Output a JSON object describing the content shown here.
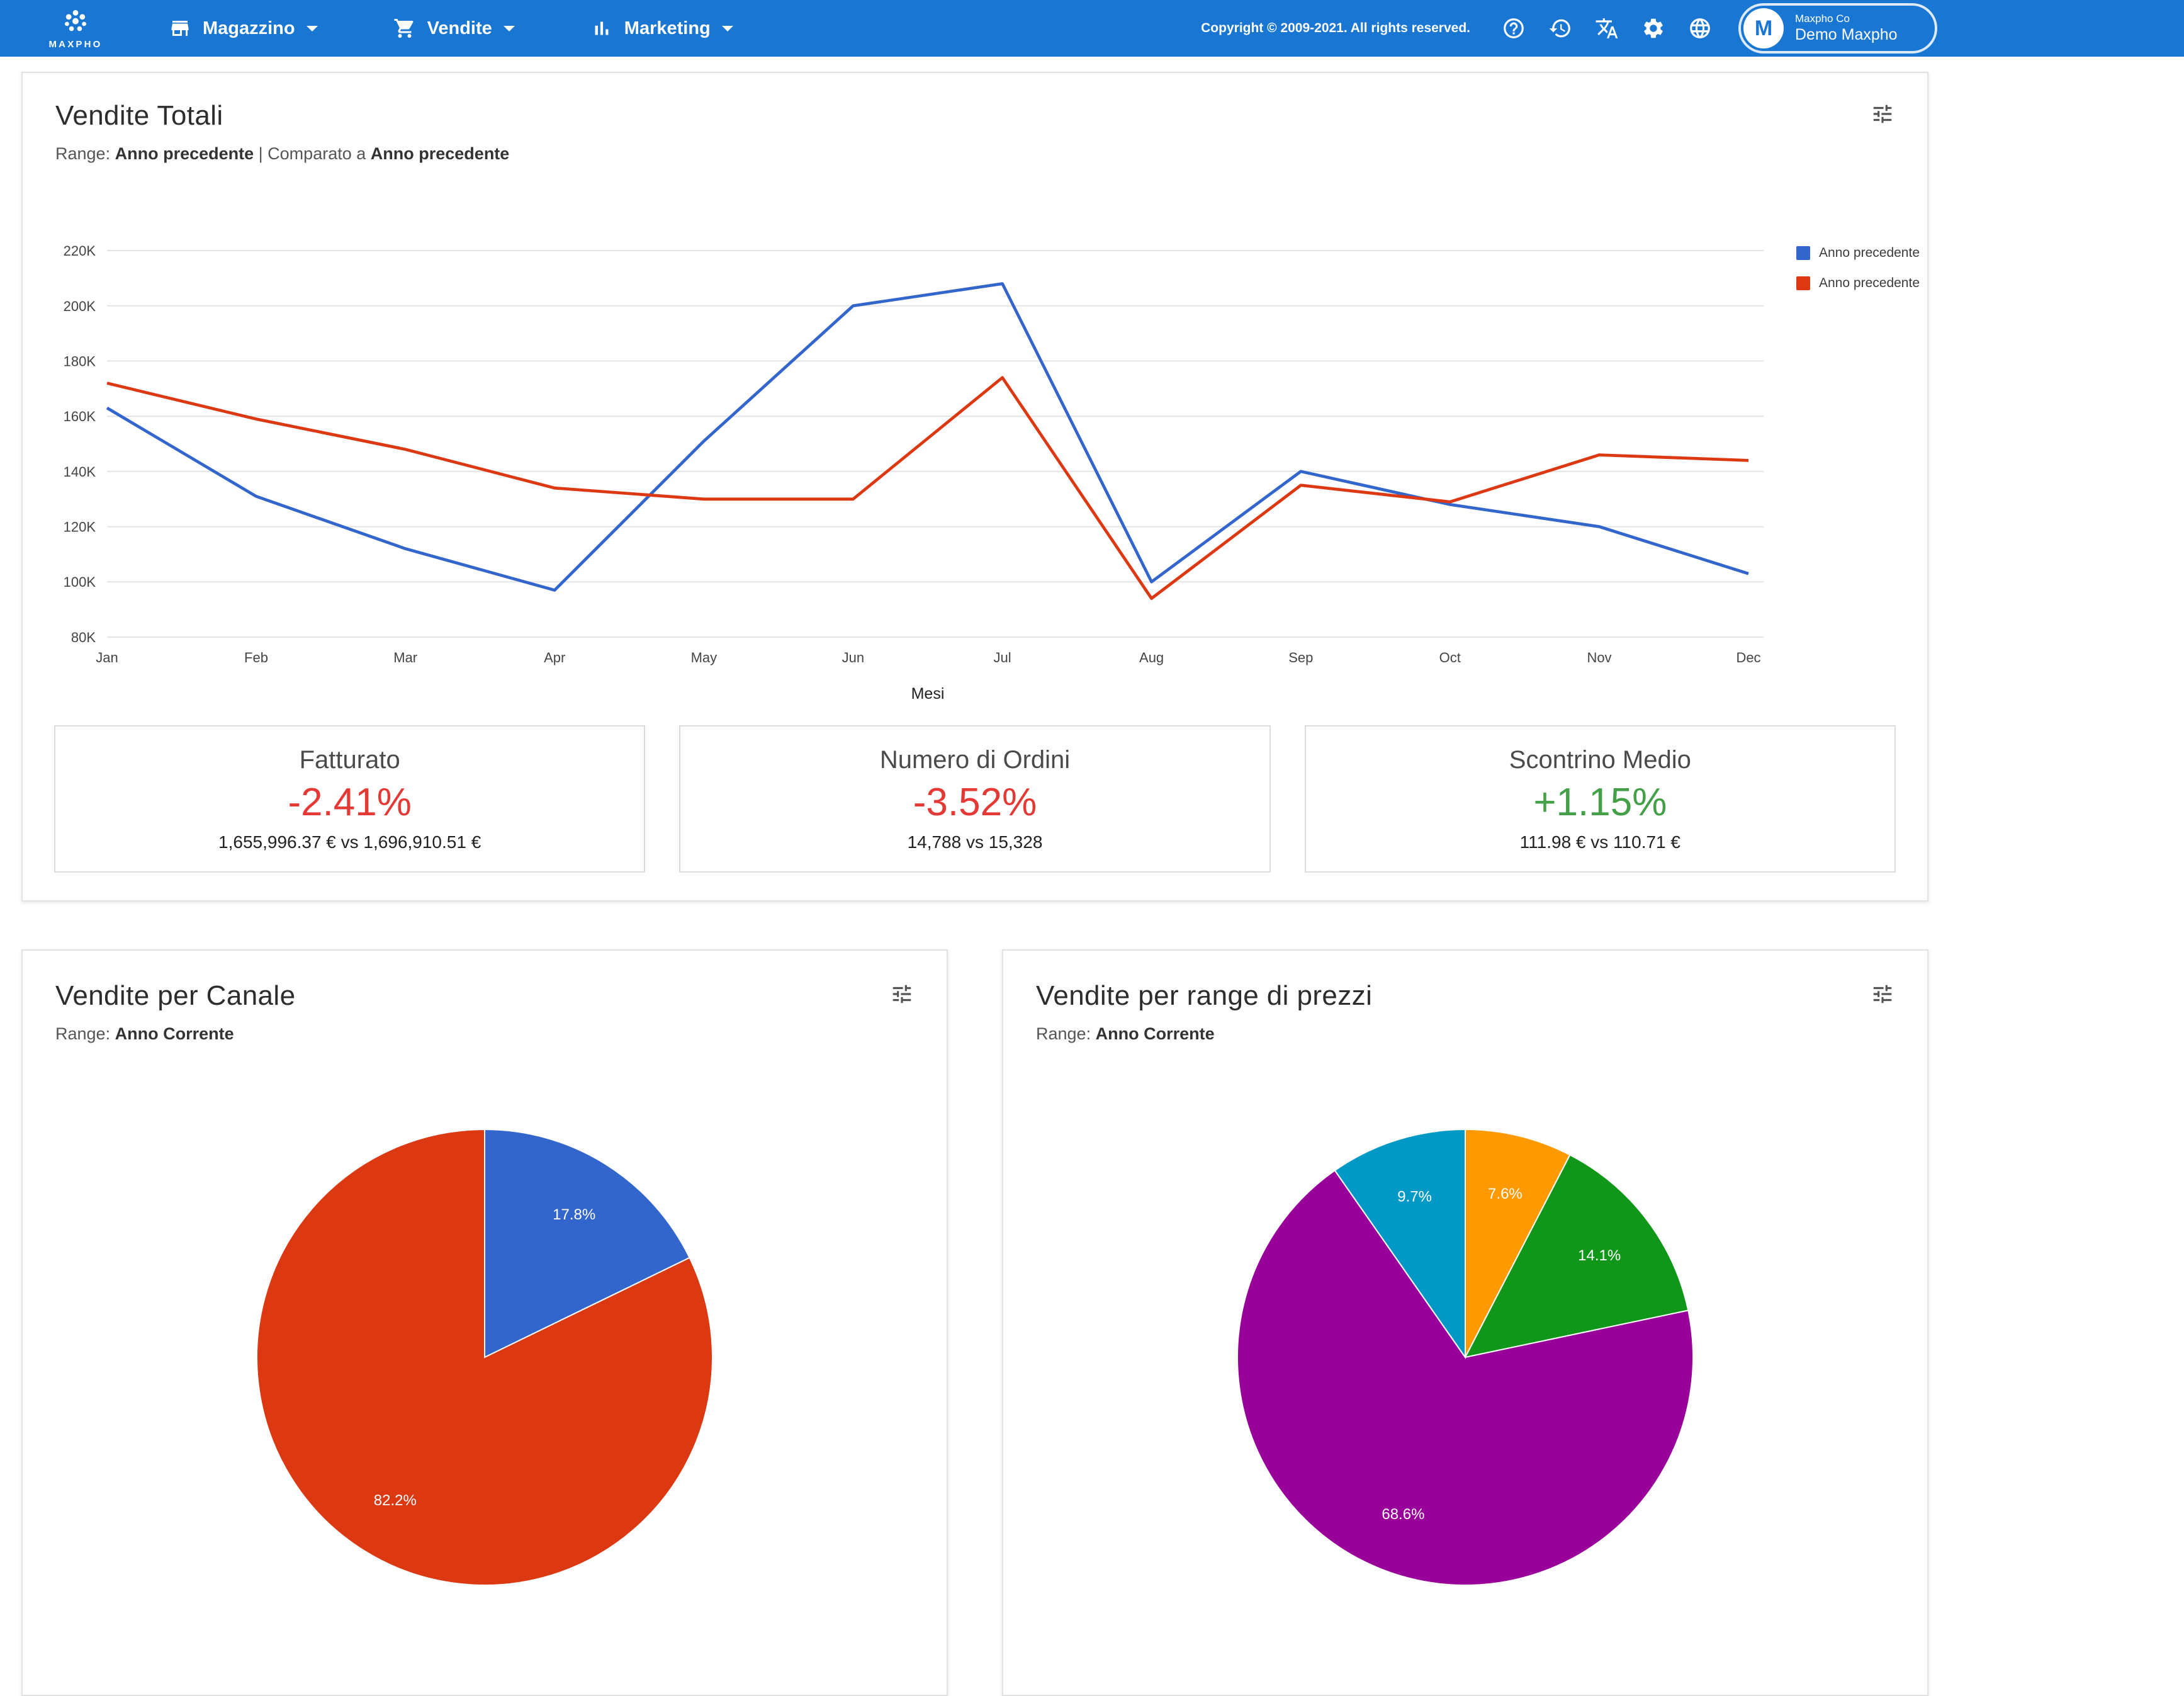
{
  "navbar": {
    "brand": "MAXPHO",
    "items": [
      {
        "label": "Magazzino",
        "icon": "store-icon"
      },
      {
        "label": "Vendite",
        "icon": "cart-icon"
      },
      {
        "label": "Marketing",
        "icon": "bar-chart-icon"
      }
    ],
    "copyright": "Copyright © 2009-2021. All rights reserved.",
    "user": {
      "initial": "M",
      "company": "Maxpho Co",
      "name": "Demo Maxpho"
    }
  },
  "main_card": {
    "title": "Vendite Totali",
    "range_label": "Range:",
    "range_value": "Anno precedente",
    "compare_label": "| Comparato a",
    "compare_value": "Anno precedente",
    "stats": [
      {
        "title": "Fatturato",
        "percent": "-2.41%",
        "detail": "1,655,996.37 € vs 1,696,910.51 €",
        "color": "#e53935"
      },
      {
        "title": "Numero di Ordini",
        "percent": "-3.52%",
        "detail": "14,788 vs 15,328",
        "color": "#e53935"
      },
      {
        "title": "Scontrino Medio",
        "percent": "+1.15%",
        "detail": "111.98 € vs 110.71 €",
        "color": "#43a047"
      }
    ]
  },
  "pie_card_1": {
    "title": "Vendite per Canale",
    "range_label": "Range:",
    "range_value": "Anno Corrente"
  },
  "pie_card_2": {
    "title": "Vendite per range di prezzi",
    "range_label": "Range:",
    "range_value": "Anno Corrente"
  },
  "chart_data": [
    {
      "type": "line",
      "title": "Vendite Totali",
      "categories": [
        "Jan",
        "Feb",
        "Mar",
        "Apr",
        "May",
        "Jun",
        "Jul",
        "Aug",
        "Sep",
        "Oct",
        "Nov",
        "Dec"
      ],
      "xlabel": "Mesi",
      "ylabel": "",
      "ylim": [
        80000,
        220000
      ],
      "ytick": 20000,
      "grid": "horizontal",
      "legend_position": "right",
      "series": [
        {
          "name": "Anno precedente",
          "color": "#3366CC",
          "values": [
            163000,
            131000,
            112000,
            97000,
            151000,
            200000,
            208000,
            100000,
            140000,
            128000,
            120000,
            103000
          ]
        },
        {
          "name": "Anno precedente",
          "color": "#DC3912",
          "values": [
            172000,
            159000,
            148000,
            134000,
            130000,
            130000,
            174000,
            94000,
            135000,
            129000,
            146000,
            144000
          ]
        }
      ]
    },
    {
      "type": "pie",
      "title": "Vendite per Canale",
      "slices": [
        {
          "label": "17.8%",
          "value": 17.8,
          "color": "#3366CC"
        },
        {
          "label": "82.2%",
          "value": 82.2,
          "color": "#DC3912"
        }
      ]
    },
    {
      "type": "pie",
      "title": "Vendite per range di prezzi",
      "slices": [
        {
          "label": "7.6%",
          "value": 7.6,
          "color": "#FF9900"
        },
        {
          "label": "14.1%",
          "value": 14.1,
          "color": "#109618"
        },
        {
          "label": "68.6%",
          "value": 68.6,
          "color": "#990099"
        },
        {
          "label": "9.7%",
          "value": 9.7,
          "color": "#0099C6"
        }
      ]
    }
  ]
}
